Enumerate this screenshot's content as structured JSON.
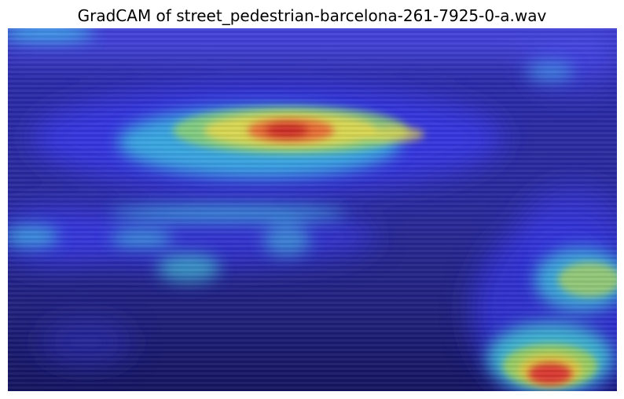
{
  "figure": {
    "title": "GradCAM of street_pedestrian-barcelona-261-7925-0-a.wav"
  },
  "overlay": {
    "colormap": "jet",
    "description_semantic": "gradcam-heatmap-over-spectrogram"
  },
  "colors": {
    "background": "#ffffff",
    "base_dark": "#1a1a6e",
    "low": "#2a2ad8",
    "mid": "#3fb0d8",
    "warm": "#e8d84a",
    "hot": "#d83030"
  }
}
